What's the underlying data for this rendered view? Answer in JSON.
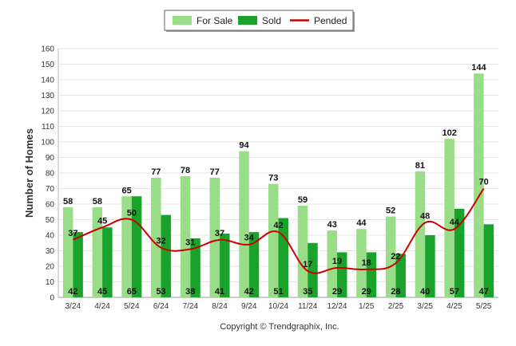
{
  "chart_data": {
    "type": "bar",
    "categories": [
      "3/24",
      "4/24",
      "5/24",
      "6/24",
      "7/24",
      "8/24",
      "9/24",
      "10/24",
      "11/24",
      "12/24",
      "1/25",
      "2/25",
      "3/25",
      "4/25",
      "5/25"
    ],
    "series": [
      {
        "name": "For Sale",
        "type": "bar",
        "color": "#99dd88",
        "values": [
          58,
          58,
          65,
          77,
          78,
          77,
          94,
          73,
          59,
          43,
          44,
          52,
          81,
          102,
          144
        ]
      },
      {
        "name": "Sold",
        "type": "bar",
        "color": "#1aa32a",
        "values": [
          42,
          45,
          65,
          53,
          38,
          41,
          42,
          51,
          35,
          29,
          29,
          28,
          40,
          57,
          47
        ]
      },
      {
        "name": "Pended",
        "type": "line",
        "color": "#cc0000",
        "values": [
          37,
          45,
          50,
          32,
          31,
          37,
          34,
          42,
          17,
          19,
          18,
          22,
          48,
          44,
          70
        ]
      }
    ],
    "ylabel": "Number of Homes",
    "xlabel": "",
    "ylim": [
      0,
      160
    ],
    "yticks": [
      0,
      10,
      20,
      30,
      40,
      50,
      60,
      70,
      80,
      90,
      100,
      110,
      120,
      130,
      140,
      150,
      160
    ],
    "grid": true,
    "legend_position": "top-center",
    "footer": "Copyright © Trendgraphix, Inc."
  }
}
